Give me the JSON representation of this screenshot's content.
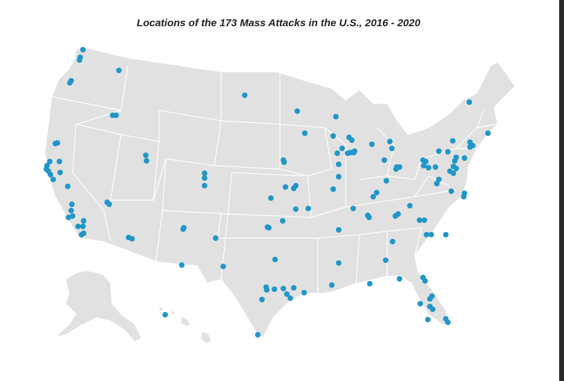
{
  "header": {
    "title": "Locations of the 173 Mass Attacks in the U.S., 2016 - 2020"
  }
}
